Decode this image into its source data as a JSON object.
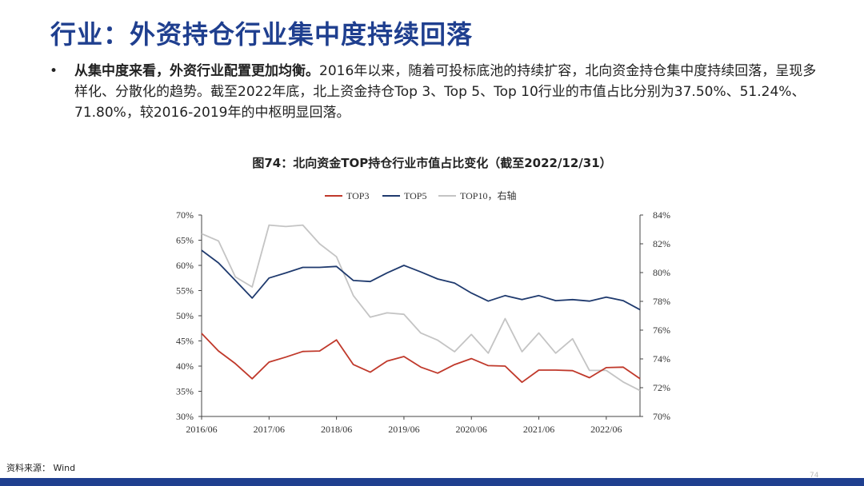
{
  "slide": {
    "title": "行业：外资持仓行业集中度持续回落",
    "bullet_marker": "•",
    "bullet_bold": "从集中度来看，外资行业配置更加均衡。",
    "bullet_text": "2016年以来，随着可投标底池的持续扩容，北向资金持仓集中度持续回落，呈现多样化、分散化的趋势。截至2022年底，北上资金持仓Top 3、Top 5、Top 10行业的市值占比分别为37.50%、51.24%、71.80%，较2016-2019年的中枢明显回落。",
    "figure_title": "图74：北向资金TOP持仓行业市值占比变化（截至2022/12/31）",
    "source": "资料来源： Wind",
    "page_number": "74"
  },
  "colors": {
    "title": "#1f3f8f",
    "top3": "#c0392b",
    "top5": "#1f3a6e",
    "top10": "#c4c4c4",
    "footer": "#1f3f8f"
  },
  "chart_data": {
    "type": "line",
    "x": [
      "2016/06",
      "2016/09",
      "2016/12",
      "2017/03",
      "2017/06",
      "2017/09",
      "2017/12",
      "2018/03",
      "2018/06",
      "2018/09",
      "2018/12",
      "2019/03",
      "2019/06",
      "2019/09",
      "2019/12",
      "2020/03",
      "2020/06",
      "2020/09",
      "2020/12",
      "2021/03",
      "2021/06",
      "2021/09",
      "2021/12",
      "2022/03",
      "2022/06",
      "2022/09",
      "2022/12"
    ],
    "x_tick_labels": [
      "2016/06",
      "2017/06",
      "2018/06",
      "2019/06",
      "2020/06",
      "2021/06",
      "2022/06"
    ],
    "series": [
      {
        "name": "TOP3",
        "axis": "left",
        "values": [
          46.5,
          43.0,
          40.5,
          37.5,
          40.8,
          41.8,
          42.9,
          43.0,
          45.2,
          40.3,
          38.8,
          41.0,
          41.9,
          39.8,
          38.6,
          40.3,
          41.5,
          40.1,
          40.0,
          36.8,
          39.2,
          39.2,
          39.1,
          37.7,
          39.7,
          39.8,
          37.5
        ]
      },
      {
        "name": "TOP5",
        "axis": "left",
        "values": [
          63.0,
          60.5,
          57.0,
          53.5,
          57.5,
          58.5,
          59.6,
          59.6,
          59.8,
          57.0,
          56.8,
          58.5,
          60.0,
          58.7,
          57.3,
          56.5,
          54.5,
          52.9,
          54.0,
          53.2,
          54.0,
          53.0,
          53.2,
          52.9,
          53.7,
          53.0,
          51.2
        ]
      },
      {
        "name": "TOP10，右轴",
        "axis": "right",
        "values": [
          82.7,
          82.2,
          79.7,
          79.0,
          83.3,
          83.2,
          83.3,
          82.0,
          81.1,
          78.4,
          76.9,
          77.2,
          77.1,
          75.8,
          75.3,
          74.5,
          75.7,
          74.4,
          76.8,
          74.5,
          75.8,
          74.4,
          75.4,
          73.2,
          73.2,
          72.4,
          71.8
        ]
      }
    ],
    "y_left": {
      "min": 30,
      "max": 70,
      "step": 5,
      "tick_labels": [
        "30%",
        "35%",
        "40%",
        "45%",
        "50%",
        "55%",
        "60%",
        "65%",
        "70%"
      ]
    },
    "y_right": {
      "min": 70,
      "max": 84,
      "step": 2,
      "tick_labels": [
        "70%",
        "72%",
        "74%",
        "76%",
        "78%",
        "80%",
        "82%",
        "84%"
      ]
    },
    "legend_position": "top-center",
    "grid": false
  }
}
